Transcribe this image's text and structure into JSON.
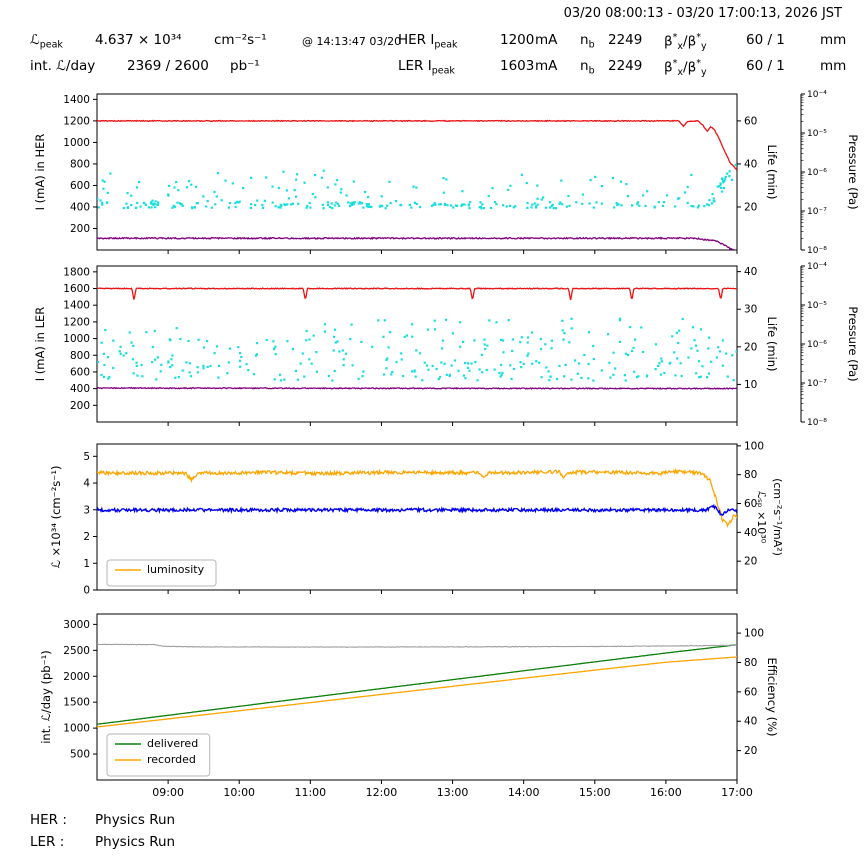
{
  "header": {
    "time_range": "03/20 08:00:13 - 03/20 17:00:13, 2026 JST",
    "lpeak": {
      "sym": "ℒ",
      "sub": "peak",
      "value": "4.637 × 10³⁴",
      "unit": "cm⁻²s⁻¹",
      "at": "@ 14:13:47 03/20"
    },
    "int_lum": {
      "label": "int. ℒ/day",
      "value": "2369 / 2600",
      "unit": "pb⁻¹"
    },
    "nb": {
      "sym": "n",
      "sub": "b"
    },
    "beta": {
      "b": "β",
      "star": "*",
      "x": "x",
      "slash": "/",
      "y": "y"
    },
    "her": {
      "name": "HER I",
      "name_sub": "peak",
      "current": "1200",
      "current_unit": "mA",
      "nb_value": "2249",
      "beta_value": "60  /  1",
      "beta_unit": "mm"
    },
    "ler": {
      "name": "LER I",
      "name_sub": "peak",
      "current": "1603",
      "current_unit": "mA",
      "nb_value": "2249",
      "beta_value": "60  /  1",
      "beta_unit": "mm"
    }
  },
  "status": {
    "her_label": "HER :",
    "her_value": "Physics Run",
    "ler_label": "LER :",
    "ler_value": "Physics Run"
  },
  "chart_data": [
    {
      "type": "line",
      "name": "HER beam current, lifetime and pressure vs time",
      "x_axis": {
        "min": 8,
        "max": 17,
        "ticks": [
          9,
          10,
          11,
          12,
          13,
          14,
          15,
          16,
          17
        ],
        "labels": null
      },
      "left_axis": {
        "label": "I (mA) in HER",
        "min": 0,
        "max": 1450,
        "ticks": [
          200,
          400,
          600,
          800,
          1000,
          1200,
          1400
        ]
      },
      "right_axis": {
        "label": "Life (min)",
        "min": 0,
        "max": 72.5,
        "ticks": [
          20,
          40,
          60
        ]
      },
      "log_axis": {
        "label": "Pressure (Pa)",
        "exp_min": -8,
        "exp_max": -4,
        "tick_exps": [
          -4,
          -5,
          -6,
          -7,
          -8
        ],
        "tick_labels": [
          "10⁻⁴",
          "10⁻⁵",
          "10⁻⁶",
          "10⁻⁷",
          "10⁻⁸"
        ]
      },
      "series": [
        {
          "name": "HER beam current (mA)",
          "color": "#ee1111",
          "axis": "left",
          "noise": 4,
          "width": 1.3,
          "points": [
            [
              8,
              1200
            ],
            [
              16.18,
              1200
            ],
            [
              16.25,
              1150
            ],
            [
              16.3,
              1193
            ],
            [
              16.45,
              1200
            ],
            [
              16.52,
              1160
            ],
            [
              16.58,
              1105
            ],
            [
              16.63,
              1148
            ],
            [
              16.68,
              1120
            ],
            [
              16.75,
              1035
            ],
            [
              16.82,
              930
            ],
            [
              16.9,
              815
            ],
            [
              17,
              740
            ]
          ]
        },
        {
          "name": "HER pressure (Pa)",
          "color": "#800080",
          "axis": "log",
          "noise": 0.04,
          "width": 1.3,
          "points": [
            [
              8,
              2e-08
            ],
            [
              16.4,
              2e-08
            ],
            [
              16.7,
              1.7e-08
            ],
            [
              16.9,
              1.1e-08
            ],
            [
              17,
              9e-09
            ]
          ]
        }
      ],
      "scatter": {
        "name": "HER beam lifetime (min)",
        "color": "#17dede",
        "axis": "right",
        "seed": 11,
        "groups": [
          {
            "count": 200,
            "x": [
              8,
              16.6
            ],
            "y": [
              19.4,
              22.3
            ]
          },
          {
            "count": 85,
            "x": [
              8,
              16.6
            ],
            "y": [
              22.3,
              33
            ]
          },
          {
            "count": 14,
            "x": [
              8,
              16.6
            ],
            "y": [
              33,
              37.5
            ]
          },
          {
            "count": 26,
            "x": [
              16.6,
              17
            ],
            "trend": [
              22,
              39
            ],
            "spread": 7
          }
        ]
      }
    },
    {
      "type": "line",
      "name": "LER beam current, lifetime and pressure vs time",
      "x_axis": {
        "min": 8,
        "max": 17,
        "ticks": [
          9,
          10,
          11,
          12,
          13,
          14,
          15,
          16,
          17
        ],
        "labels": null
      },
      "left_axis": {
        "label": "I (mA) in LER",
        "min": 0,
        "max": 1870,
        "ticks": [
          200,
          400,
          600,
          800,
          1000,
          1200,
          1400,
          1600,
          1800
        ]
      },
      "right_axis": {
        "label": "Life (min)",
        "min": 0,
        "max": 41.5,
        "ticks": [
          10,
          20,
          30,
          40
        ]
      },
      "log_axis": {
        "label": "Pressure (Pa)",
        "exp_min": -8,
        "exp_max": -4,
        "tick_exps": [
          -4,
          -5,
          -6,
          -7,
          -8
        ],
        "tick_labels": [
          "10⁻⁴",
          "10⁻⁵",
          "10⁻⁶",
          "10⁻⁷",
          "10⁻⁸"
        ]
      },
      "series": [
        {
          "name": "LER beam current (mA)",
          "color": "#ee1111",
          "axis": "left",
          "noise": 5,
          "width": 1.3,
          "points": [
            [
              8,
              1600
            ],
            [
              17,
              1600
            ]
          ],
          "spikes": {
            "xs": [
              8.52,
              10.93,
              13.28,
              14.66,
              15.52,
              16.77
            ],
            "depth": 140,
            "width": 0.03
          }
        },
        {
          "name": "LER pressure (Pa)",
          "color": "#800080",
          "axis": "log",
          "noise": 0.03,
          "width": 1.3,
          "points": [
            [
              8,
              7.4e-08
            ],
            [
              17,
              7.2e-08
            ]
          ]
        }
      ],
      "scatter": {
        "name": "LER beam lifetime (min)",
        "color": "#17dede",
        "axis": "right",
        "seed": 23,
        "groups": [
          {
            "count": 150,
            "x": [
              8,
              17
            ],
            "y": [
              11,
              16
            ]
          },
          {
            "count": 120,
            "x": [
              8,
              17
            ],
            "y": [
              15.5,
              22
            ]
          },
          {
            "count": 55,
            "x": [
              11,
              17
            ],
            "y": [
              21,
              27.5
            ]
          },
          {
            "count": 10,
            "x": [
              8,
              11
            ],
            "y": [
              21,
              25
            ]
          }
        ]
      }
    },
    {
      "type": "line",
      "name": "Luminosity and specific luminosity vs time",
      "x_axis": {
        "min": 8,
        "max": 17,
        "ticks": [
          9,
          10,
          11,
          12,
          13,
          14,
          15,
          16,
          17
        ],
        "labels": null
      },
      "left_axis": {
        "label": "ℒ ×10³⁴ (cm⁻²s⁻¹)",
        "min": 0,
        "max": 5.46,
        "ticks": [
          0,
          1,
          2,
          3,
          4,
          5
        ]
      },
      "right_axis": {
        "label_lines": [
          "ℒₛₚ ×10³⁰",
          "(cm⁻²s⁻¹/mA²)"
        ],
        "min": 0,
        "max": 101.3,
        "ticks": [
          20,
          40,
          60,
          80,
          100
        ]
      },
      "series": [
        {
          "name": "luminosity (×10³⁴ cm⁻²s⁻¹)",
          "color": "#ffa500",
          "axis": "left",
          "noise": 0.065,
          "width": 1.3,
          "points": [
            [
              8,
              4.38
            ],
            [
              9.25,
              4.37
            ],
            [
              9.32,
              4.12
            ],
            [
              9.42,
              4.36
            ],
            [
              10.4,
              4.4
            ],
            [
              11.2,
              4.36
            ],
            [
              12.1,
              4.4
            ],
            [
              13.35,
              4.38
            ],
            [
              13.42,
              4.22
            ],
            [
              13.5,
              4.38
            ],
            [
              14.5,
              4.42
            ],
            [
              14.56,
              4.2
            ],
            [
              14.64,
              4.4
            ],
            [
              15.1,
              4.42
            ],
            [
              15.95,
              4.35
            ],
            [
              16.05,
              4.44
            ],
            [
              16.3,
              4.42
            ],
            [
              16.5,
              4.35
            ],
            [
              16.62,
              4.1
            ],
            [
              16.72,
              3.3
            ],
            [
              16.8,
              2.6
            ],
            [
              16.88,
              2.42
            ],
            [
              16.95,
              2.75
            ],
            [
              17,
              2.7
            ]
          ]
        },
        {
          "name": "specific luminosity (×10³⁰ cm⁻²s⁻¹/mA²)",
          "color": "#0000ee",
          "axis": "right",
          "noise": 1.1,
          "width": 1.4,
          "points": [
            [
              8,
              55.5
            ],
            [
              16.55,
              55.5
            ],
            [
              16.68,
              58
            ],
            [
              16.78,
              52
            ],
            [
              16.9,
              56
            ],
            [
              17,
              55
            ]
          ]
        }
      ],
      "legend": [
        {
          "label": "luminosity",
          "color": "#ffa500"
        }
      ]
    },
    {
      "type": "line",
      "name": "Integrated luminosity per day and efficiency vs time",
      "x_axis": {
        "min": 8,
        "max": 17,
        "ticks": [
          9,
          10,
          11,
          12,
          13,
          14,
          15,
          16,
          17
        ],
        "labels": [
          "09:00",
          "10:00",
          "11:00",
          "12:00",
          "13:00",
          "14:00",
          "15:00",
          "16:00",
          "17:00"
        ]
      },
      "left_axis": {
        "label": "int. ℒ/day (pb⁻¹)",
        "min": 0,
        "max": 3200,
        "ticks": [
          500,
          1000,
          1500,
          2000,
          2500,
          3000
        ]
      },
      "right_axis": {
        "label": "Efficiency (%)",
        "min": 0,
        "max": 113,
        "ticks": [
          20,
          40,
          60,
          80,
          100
        ]
      },
      "series": [
        {
          "name": "delivered (pb⁻¹)",
          "color": "#0e7f0e",
          "axis": "left",
          "noise": 1.5,
          "width": 1.3,
          "points": [
            [
              8,
              1075
            ],
            [
              9,
              1247
            ],
            [
              10,
              1420
            ],
            [
              11,
              1592
            ],
            [
              12,
              1763
            ],
            [
              13,
              1934
            ],
            [
              14,
              2106
            ],
            [
              15,
              2277
            ],
            [
              16,
              2448
            ],
            [
              17,
              2607
            ]
          ]
        },
        {
          "name": "recorded (pb⁻¹)",
          "color": "#ffa500",
          "axis": "left",
          "noise": 1.5,
          "width": 1.3,
          "points": [
            [
              8,
              1022
            ],
            [
              9,
              1178
            ],
            [
              10,
              1335
            ],
            [
              11,
              1492
            ],
            [
              12,
              1650
            ],
            [
              13,
              1806
            ],
            [
              14,
              1962
            ],
            [
              15,
              2118
            ],
            [
              16,
              2270
            ],
            [
              17,
              2372
            ]
          ]
        },
        {
          "name": "efficiency (%)",
          "color": "#9e9e9e",
          "axis": "right",
          "noise": 0.18,
          "width": 1.1,
          "points": [
            [
              8,
              92.3
            ],
            [
              8.8,
              92.2
            ],
            [
              8.95,
              91.0
            ],
            [
              9.4,
              90.6
            ],
            [
              11,
              90.5
            ],
            [
              13,
              90.6
            ],
            [
              15,
              90.9
            ],
            [
              16.5,
              91.4
            ],
            [
              17,
              91.8
            ]
          ]
        }
      ],
      "legend": [
        {
          "label": "delivered",
          "color": "#0e7f0e"
        },
        {
          "label": "recorded",
          "color": "#ffa500"
        }
      ]
    }
  ]
}
